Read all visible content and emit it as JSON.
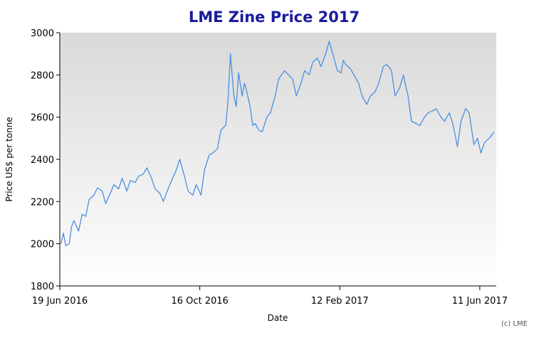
{
  "chart_data": {
    "type": "line",
    "title": "LME Zine Price 2017",
    "xlabel": "Date",
    "ylabel": "Price US$ per tonne",
    "credit": "(c) LME",
    "ylim": [
      1800,
      3000
    ],
    "yticks": [
      "1800",
      "2000",
      "2200",
      "2400",
      "2600",
      "2800",
      "3000"
    ],
    "xlim": [
      "2016-06-19",
      "2017-06-25"
    ],
    "xticks": [
      {
        "date": "2016-06-19",
        "label": "19 Jun 2016"
      },
      {
        "date": "2016-10-16",
        "label": "16 Oct 2016"
      },
      {
        "date": "2017-02-12",
        "label": "12 Feb 2017"
      },
      {
        "date": "2017-06-11",
        "label": "11 Jun 2017"
      }
    ],
    "grid": false,
    "colors": {
      "line": "#4a90e2",
      "title": "#1a1a9e",
      "plot_bg_top": "#d9d9d9",
      "plot_bg_bottom": "#ffffff"
    },
    "series": [
      {
        "x": [
          "2016-06-20",
          "2016-06-22",
          "2016-06-24",
          "2016-06-27",
          "2016-06-29",
          "2016-07-01",
          "2016-07-05",
          "2016-07-08",
          "2016-07-11",
          "2016-07-14",
          "2016-07-18",
          "2016-07-21",
          "2016-07-25",
          "2016-07-28",
          "2016-08-01",
          "2016-08-04",
          "2016-08-08",
          "2016-08-11",
          "2016-08-15",
          "2016-08-18",
          "2016-08-22",
          "2016-08-25",
          "2016-08-29",
          "2016-09-01",
          "2016-09-05",
          "2016-09-08",
          "2016-09-12",
          "2016-09-15",
          "2016-09-19",
          "2016-09-22",
          "2016-09-26",
          "2016-09-29",
          "2016-10-03",
          "2016-10-06",
          "2016-10-10",
          "2016-10-13",
          "2016-10-17",
          "2016-10-20",
          "2016-10-24",
          "2016-10-27",
          "2016-10-31",
          "2016-11-03",
          "2016-11-07",
          "2016-11-09",
          "2016-11-11",
          "2016-11-14",
          "2016-11-16",
          "2016-11-18",
          "2016-11-21",
          "2016-11-23",
          "2016-11-25",
          "2016-11-28",
          "2016-11-30",
          "2016-12-02",
          "2016-12-05",
          "2016-12-08",
          "2016-12-12",
          "2016-12-15",
          "2016-12-19",
          "2016-12-22",
          "2016-12-27",
          "2017-01-03",
          "2017-01-06",
          "2017-01-10",
          "2017-01-13",
          "2017-01-17",
          "2017-01-20",
          "2017-01-24",
          "2017-01-27",
          "2017-01-31",
          "2017-02-03",
          "2017-02-07",
          "2017-02-10",
          "2017-02-13",
          "2017-02-15",
          "2017-02-17",
          "2017-02-21",
          "2017-02-24",
          "2017-02-28",
          "2017-03-03",
          "2017-03-07",
          "2017-03-10",
          "2017-03-14",
          "2017-03-17",
          "2017-03-21",
          "2017-03-24",
          "2017-03-28",
          "2017-03-31",
          "2017-04-04",
          "2017-04-07",
          "2017-04-11",
          "2017-04-14",
          "2017-04-18",
          "2017-04-21",
          "2017-04-25",
          "2017-04-28",
          "2017-05-02",
          "2017-05-05",
          "2017-05-09",
          "2017-05-12",
          "2017-05-16",
          "2017-05-19",
          "2017-05-23",
          "2017-05-26",
          "2017-05-30",
          "2017-06-02",
          "2017-06-06",
          "2017-06-09",
          "2017-06-12",
          "2017-06-15",
          "2017-06-19",
          "2017-06-22",
          "2017-06-23"
        ],
        "y": [
          2000,
          2050,
          1990,
          2000,
          2080,
          2110,
          2060,
          2140,
          2130,
          2210,
          2230,
          2265,
          2250,
          2190,
          2240,
          2280,
          2260,
          2310,
          2250,
          2300,
          2290,
          2320,
          2330,
          2360,
          2310,
          2260,
          2240,
          2200,
          2260,
          2300,
          2350,
          2400,
          2320,
          2250,
          2230,
          2280,
          2230,
          2350,
          2420,
          2430,
          2450,
          2540,
          2560,
          2680,
          2900,
          2700,
          2650,
          2810,
          2700,
          2760,
          2720,
          2640,
          2560,
          2570,
          2540,
          2530,
          2600,
          2620,
          2700,
          2780,
          2820,
          2780,
          2700,
          2760,
          2820,
          2800,
          2860,
          2880,
          2840,
          2900,
          2960,
          2880,
          2820,
          2810,
          2870,
          2850,
          2830,
          2800,
          2760,
          2700,
          2660,
          2700,
          2720,
          2760,
          2840,
          2850,
          2820,
          2700,
          2740,
          2800,
          2700,
          2580,
          2570,
          2560,
          2600,
          2620,
          2630,
          2640,
          2600,
          2580,
          2620,
          2570,
          2460,
          2580,
          2640,
          2620,
          2470,
          2500,
          2430,
          2480,
          2500,
          2520,
          2530
        ]
      }
    ]
  }
}
